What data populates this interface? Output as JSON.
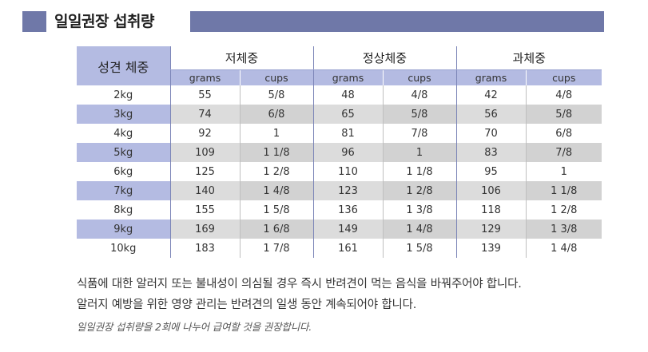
{
  "title": "일일권장 섭취량",
  "table": {
    "corner_label": "성견 체중",
    "groups": [
      "저체중",
      "정상체중",
      "과체중"
    ],
    "units": [
      "grams",
      "cups",
      "grams",
      "cups",
      "grams",
      "cups"
    ],
    "rows": [
      {
        "weight": "2kg",
        "cells": [
          "55",
          "5/8",
          "48",
          "4/8",
          "42",
          "4/8"
        ]
      },
      {
        "weight": "3kg",
        "cells": [
          "74",
          "6/8",
          "65",
          "5/8",
          "56",
          "5/8"
        ]
      },
      {
        "weight": "4kg",
        "cells": [
          "92",
          "1",
          "81",
          "7/8",
          "70",
          "6/8"
        ]
      },
      {
        "weight": "5kg",
        "cells": [
          "109",
          "1 1/8",
          "96",
          "1",
          "83",
          "7/8"
        ]
      },
      {
        "weight": "6kg",
        "cells": [
          "125",
          "1 2/8",
          "110",
          "1 1/8",
          "95",
          "1"
        ]
      },
      {
        "weight": "7kg",
        "cells": [
          "140",
          "1 4/8",
          "123",
          "1 2/8",
          "106",
          "1 1/8"
        ]
      },
      {
        "weight": "8kg",
        "cells": [
          "155",
          "1 5/8",
          "136",
          "1 3/8",
          "118",
          "1 2/8"
        ]
      },
      {
        "weight": "9kg",
        "cells": [
          "169",
          "1 6/8",
          "149",
          "1 4/8",
          "129",
          "1 3/8"
        ]
      },
      {
        "weight": "10kg",
        "cells": [
          "183",
          "1 7/8",
          "161",
          "1 5/8",
          "139",
          "1 4/8"
        ]
      }
    ]
  },
  "notes": [
    "식품에 대한 알러지 또는 불내성이 의심될 경우 즉시 반려견이 먹는 음식을 바꿔주어야 합니다.",
    "알러지 예방을 위한 영양 관리는 반려견의 일생 동안 계속되어야 합니다.",
    "일일권장 섭취량을 2회에 나누어 급여할 것을 권장합니다."
  ],
  "colors": {
    "accent": "#6f78a8",
    "header_fill": "#b4bbe2",
    "row_shade": "#dcdcdc"
  }
}
